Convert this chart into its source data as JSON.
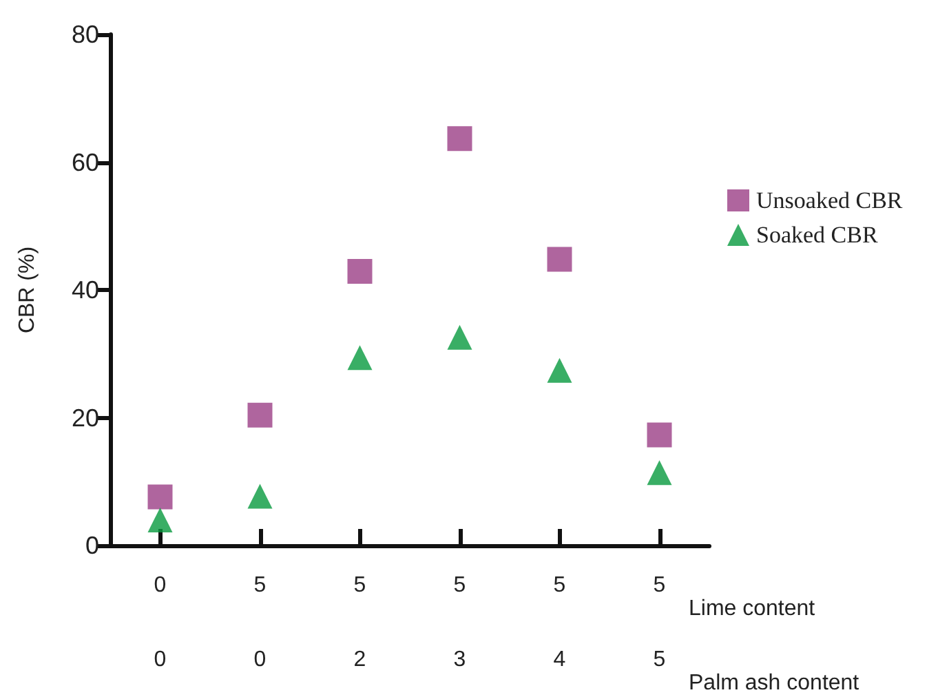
{
  "chart_data": {
    "type": "scatter",
    "ylabel": "CBR (%)",
    "categories": [
      "0\n0",
      "5\n0",
      "5\n2",
      "5\n3",
      "5\n4",
      "5\n5"
    ],
    "series": [
      {
        "name": "Unsoaked CBR",
        "color": "#9b3f86",
        "marker": "square",
        "values": [
          7.6,
          20.4,
          42.9,
          63.7,
          44.8,
          17.3
        ]
      },
      {
        "name": "Soaked CBR",
        "color": "#079a3e",
        "marker": "triangle",
        "values": [
          4,
          7.7,
          29.4,
          32.6,
          27.4,
          11.4
        ]
      }
    ],
    "ylim": [
      0,
      80
    ],
    "yticks": [
      0,
      20,
      40,
      60,
      80
    ],
    "grid": false,
    "legend": "right",
    "annotations": [
      "Lime content",
      "Palm ash content"
    ]
  }
}
